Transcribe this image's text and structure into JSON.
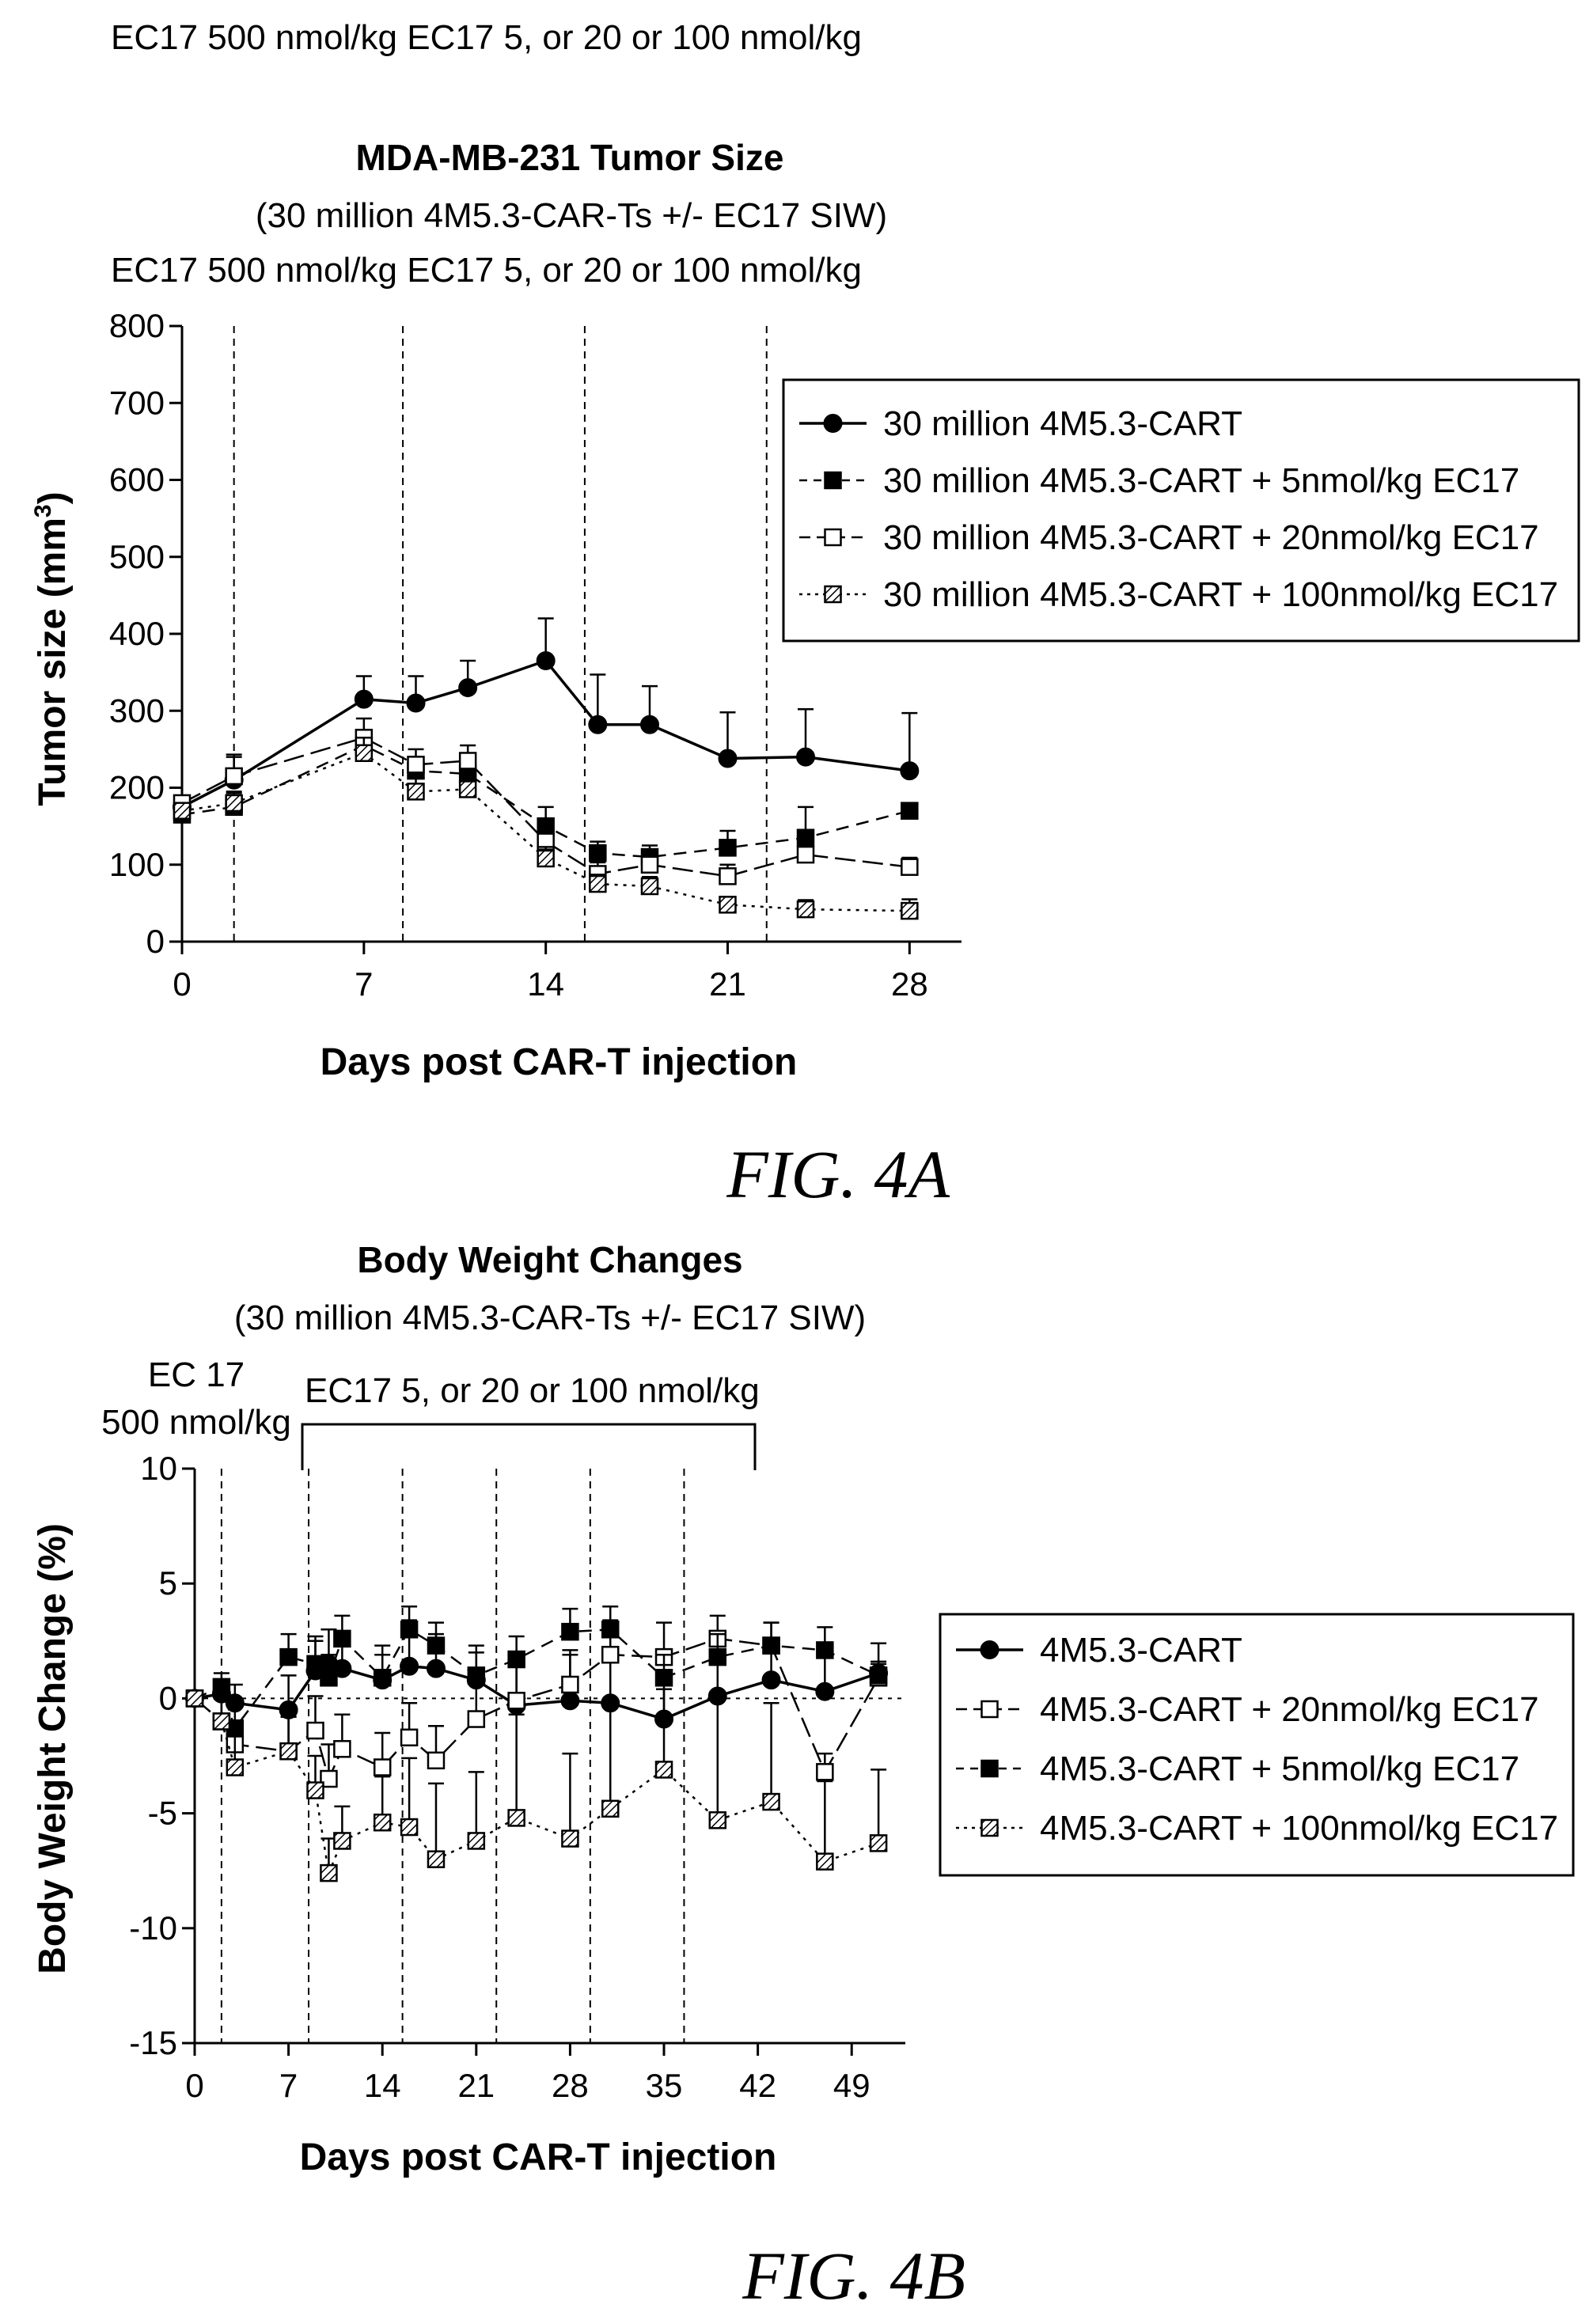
{
  "page_header": "EC17 500 nmol/kg  EC17 5, or 20 or 100 nmol/kg",
  "chart_data": [
    {
      "type": "line",
      "title": "MDA-MB-231 Tumor Size",
      "subtitle": "(30 million 4M5.3-CAR-Ts +/- EC17 SIW)",
      "dosing_note": "EC17 500 nmol/kg  EC17 5, or 20 or 100 nmol/kg",
      "figure_label": "FIG. 4A",
      "xlabel": "Days post CAR-T injection",
      "ylabel": "Tumor size (mm",
      "ylabel_sup": "3",
      "ylabel_end": ")",
      "xlim": [
        0,
        30
      ],
      "ylim": [
        0,
        800
      ],
      "xticks": [
        0,
        7,
        14,
        21,
        28
      ],
      "yticks": [
        0,
        100,
        200,
        300,
        400,
        500,
        600,
        700,
        800
      ],
      "dosing_days": [
        2,
        8.5,
        15.5,
        22.5
      ],
      "legend_position": "top-right",
      "series": [
        {
          "name": "30 million 4M5.3-CART",
          "marker": "filled-circle",
          "line": "solid",
          "points": [
            [
              0,
              175,
              12
            ],
            [
              2,
              210,
              30
            ],
            [
              7,
              315,
              30
            ],
            [
              9,
              310,
              35
            ],
            [
              11,
              330,
              35
            ],
            [
              14,
              365,
              55
            ],
            [
              16,
              282,
              65
            ],
            [
              18,
              282,
              50
            ],
            [
              21,
              238,
              60
            ],
            [
              24,
              240,
              62
            ],
            [
              28,
              222,
              75
            ]
          ]
        },
        {
          "name": "30 million 4M5.3-CART + 5nmol/kg EC17",
          "marker": "filled-square",
          "line": "dash",
          "points": [
            [
              0,
              165,
              10
            ],
            [
              2,
              175,
              18
            ],
            [
              7,
              255,
              20
            ],
            [
              9,
              222,
              18
            ],
            [
              11,
              218,
              18
            ],
            [
              14,
              150,
              25
            ],
            [
              16,
              115,
              15
            ],
            [
              18,
              110,
              15
            ],
            [
              21,
              122,
              22
            ],
            [
              24,
              135,
              40
            ],
            [
              28,
              170,
              0
            ]
          ]
        },
        {
          "name": "30 million 4M5.3-CART + 20nmol/kg EC17",
          "marker": "open-square",
          "line": "longdash",
          "points": [
            [
              0,
              180,
              10
            ],
            [
              2,
              215,
              28
            ],
            [
              7,
              265,
              25
            ],
            [
              9,
              230,
              20
            ],
            [
              11,
              235,
              20
            ],
            [
              14,
              130,
              20
            ],
            [
              16,
              88,
              15
            ],
            [
              18,
              100,
              18
            ],
            [
              21,
              85,
              15
            ],
            [
              24,
              113,
              25
            ],
            [
              28,
              97,
              12
            ]
          ]
        },
        {
          "name": "30 million 4M5.3-CART + 100nmol/kg EC17",
          "marker": "hatched-square",
          "line": "dot",
          "points": [
            [
              0,
              170,
              10
            ],
            [
              2,
              180,
              15
            ],
            [
              7,
              245,
              20
            ],
            [
              9,
              195,
              18
            ],
            [
              11,
              198,
              20
            ],
            [
              14,
              108,
              15
            ],
            [
              16,
              75,
              12
            ],
            [
              18,
              72,
              12
            ],
            [
              21,
              48,
              10
            ],
            [
              24,
              42,
              12
            ],
            [
              28,
              40,
              15
            ]
          ]
        }
      ]
    },
    {
      "type": "line",
      "title": "Body Weight Changes",
      "subtitle": "(30 million 4M5.3-CAR-Ts +/- EC17 SIW)",
      "dosing_note_1_line1": "EC 17",
      "dosing_note_1_line2": "500 nmol/kg",
      "dosing_note_2": "EC17 5, or 20 or 100 nmol/kg",
      "figure_label": "FIG. 4B",
      "xlabel": "Days post CAR-T injection",
      "ylabel": "Body Weight Change (%)",
      "xlim": [
        0,
        53
      ],
      "ylim": [
        -15,
        10
      ],
      "xticks": [
        0,
        7,
        14,
        21,
        28,
        35,
        42,
        49
      ],
      "yticks": [
        -15,
        -10,
        -5,
        0,
        5,
        10
      ],
      "dosing_days": [
        2,
        8.5,
        15.5,
        22.5,
        29.5,
        36.5
      ],
      "legend_position": "right",
      "series": [
        {
          "name": "4M5.3-CART",
          "marker": "filled-circle",
          "line": "solid",
          "points": [
            [
              0,
              0,
              0
            ],
            [
              2,
              0.2,
              0.6
            ],
            [
              3,
              -0.2,
              0.8
            ],
            [
              7,
              -0.5,
              1.5
            ],
            [
              9,
              1.2,
              1.5
            ],
            [
              10,
              1.5,
              1.5
            ],
            [
              11,
              1.3,
              1.5
            ],
            [
              14,
              0.8,
              1.5
            ],
            [
              16,
              1.4,
              2
            ],
            [
              18,
              1.3,
              1.5
            ],
            [
              21,
              0.8,
              1.5
            ],
            [
              24,
              -0.3,
              2
            ],
            [
              28,
              -0.1,
              2
            ],
            [
              31,
              -0.2,
              2
            ],
            [
              35,
              -0.9,
              2
            ],
            [
              39,
              0.1,
              2
            ],
            [
              43,
              0.8,
              1.5
            ],
            [
              47,
              0.3,
              1.5
            ],
            [
              51,
              1.1,
              0.5
            ]
          ]
        },
        {
          "name": "4M5.3-CART + 20nmol/kg EC17",
          "marker": "open-square",
          "line": "longdash",
          "points": [
            [
              0,
              0,
              0
            ],
            [
              2,
              -1,
              1
            ],
            [
              3,
              -2,
              1
            ],
            [
              7,
              -2.3,
              1.5
            ],
            [
              9,
              -1.4,
              1.5
            ],
            [
              10,
              -3.5,
              1.5
            ],
            [
              11,
              -2.2,
              1.5
            ],
            [
              14,
              -3,
              1.5
            ],
            [
              16,
              -1.7,
              1.5
            ],
            [
              18,
              -2.7,
              1.5
            ],
            [
              21,
              -0.9,
              1.5
            ],
            [
              24,
              -0.1,
              1.5
            ],
            [
              28,
              0.6,
              1.5
            ],
            [
              31,
              1.9,
              1.5
            ],
            [
              35,
              1.8,
              1.5
            ],
            [
              39,
              2.6,
              1
            ],
            [
              43,
              2.3,
              1
            ],
            [
              47,
              -3.2,
              0.8
            ],
            [
              51,
              0.9,
              1.5
            ]
          ]
        },
        {
          "name": "4M5.3-CART + 5nmol/kg EC17",
          "marker": "filled-square",
          "line": "dash",
          "points": [
            [
              0,
              0,
              0
            ],
            [
              2,
              0.5,
              0.6
            ],
            [
              3,
              -1.3,
              1
            ],
            [
              7,
              1.8,
              1
            ],
            [
              9,
              1.5,
              1
            ],
            [
              10,
              0.9,
              1
            ],
            [
              11,
              2.6,
              1
            ],
            [
              14,
              0.9,
              1
            ],
            [
              16,
              3,
              1
            ],
            [
              18,
              2.3,
              1
            ],
            [
              21,
              1,
              1
            ],
            [
              24,
              1.7,
              1
            ],
            [
              28,
              2.9,
              1
            ],
            [
              31,
              3,
              1
            ],
            [
              35,
              0.9,
              1
            ],
            [
              39,
              1.8,
              1
            ],
            [
              43,
              2.3,
              1
            ],
            [
              47,
              2.1,
              1
            ],
            [
              51,
              1,
              0.5
            ]
          ]
        },
        {
          "name": "4M5.3-CART + 100nmol/kg EC17",
          "marker": "hatched-square",
          "line": "dot",
          "points": [
            [
              0,
              0,
              0
            ],
            [
              2,
              -1,
              1
            ],
            [
              3,
              -3,
              1.5
            ],
            [
              7,
              -2.3,
              1.5
            ],
            [
              9,
              -4,
              1.5
            ],
            [
              10,
              -7.6,
              1.5
            ],
            [
              11,
              -6.2,
              1.5
            ],
            [
              14,
              -5.4,
              2
            ],
            [
              16,
              -5.6,
              3
            ],
            [
              18,
              -7,
              3.3
            ],
            [
              21,
              -6.2,
              3
            ],
            [
              24,
              -5.2,
              4.5
            ],
            [
              28,
              -6.1,
              3.7
            ],
            [
              31,
              -4.8,
              4.7
            ],
            [
              35,
              -3.1,
              3.5
            ],
            [
              39,
              -5.3,
              5.6
            ],
            [
              43,
              -4.5,
              4.3
            ],
            [
              47,
              -7.1,
              3.5
            ],
            [
              51,
              -6.3,
              3.2
            ]
          ]
        }
      ]
    }
  ]
}
